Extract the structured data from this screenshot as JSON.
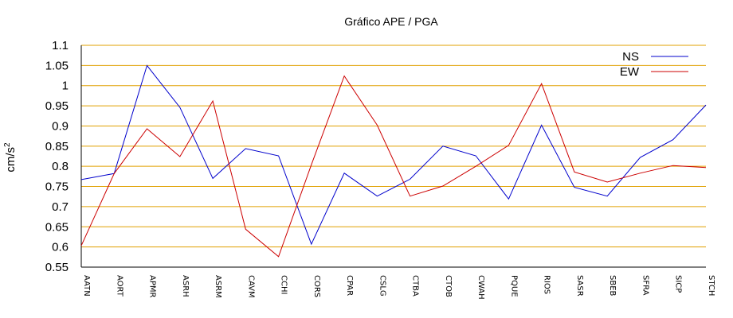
{
  "chart_data": {
    "type": "line",
    "title": "Gráfico  APE / PGA",
    "xlabel": "",
    "ylabel": "cm/s",
    "ylabel_sup": "2",
    "ylim": [
      0.55,
      1.1
    ],
    "yticks": [
      0.55,
      0.6,
      0.65,
      0.7,
      0.75,
      0.8,
      0.85,
      0.9,
      0.95,
      1,
      1.05,
      1.1
    ],
    "ytick_labels": [
      "0.55",
      "0.6",
      "0.65",
      "0.7",
      "0.75",
      "0.8",
      "0.85",
      "0.9",
      "0.95",
      "1",
      "1.05",
      "1.1"
    ],
    "grid": "horizontal",
    "legend_position": "top-right",
    "categories": [
      "AATN",
      "AORT",
      "APMR",
      "ASRH",
      "ASRM",
      "CAVM",
      "CCHI",
      "CORS",
      "CPAR",
      "CSLG",
      "CTBA",
      "CTOB",
      "CWAH",
      "PQUE",
      "RIOS",
      "SASR",
      "SBEB",
      "SFRA",
      "SICP",
      "STCH"
    ],
    "series": [
      {
        "name": "NS",
        "color": "#0000cc",
        "values": [
          0.767,
          0.782,
          1.05,
          0.946,
          0.77,
          0.844,
          0.826,
          0.607,
          0.783,
          0.726,
          0.768,
          0.85,
          0.826,
          0.719,
          0.902,
          0.748,
          0.726,
          0.822,
          0.866,
          0.952
        ]
      },
      {
        "name": "EW",
        "color": "#cc0000",
        "values": [
          0.603,
          0.782,
          0.893,
          0.824,
          0.962,
          0.644,
          0.576,
          0.804,
          1.024,
          0.902,
          0.726,
          0.751,
          0.8,
          0.852,
          1.005,
          0.786,
          0.761,
          0.783,
          0.802,
          0.797
        ]
      }
    ],
    "grid_color": "#e0a000",
    "axis_color": "#000000"
  }
}
